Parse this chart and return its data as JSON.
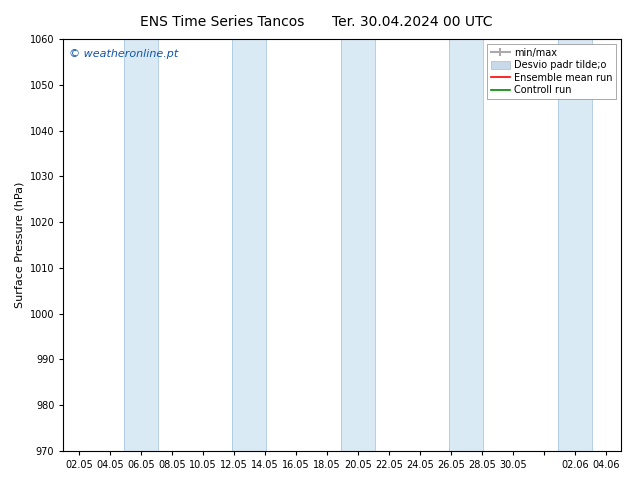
{
  "title_left": "ENS Time Series Tancos",
  "title_right": "Ter. 30.04.2024 00 UTC",
  "ylabel": "Surface Pressure (hPa)",
  "ylim": [
    970,
    1060
  ],
  "yticks": [
    970,
    980,
    990,
    1000,
    1010,
    1020,
    1030,
    1040,
    1050,
    1060
  ],
  "xtick_labels": [
    "02.05",
    "04.05",
    "06.05",
    "08.05",
    "10.05",
    "12.05",
    "14.05",
    "16.05",
    "18.05",
    "20.05",
    "22.05",
    "24.05",
    "26.05",
    "28.05",
    "30.05",
    "",
    "02.06",
    "04.06"
  ],
  "watermark": "© weatheronline.pt",
  "legend_entries": [
    "min/max",
    "Desvio padr tilde;o",
    "Ensemble mean run",
    "Controll run"
  ],
  "background_color": "#ffffff",
  "plot_bg_color": "#ffffff",
  "band_color": "#daeaf5",
  "band_edge_color": "#aac8e0",
  "title_fontsize": 10,
  "axis_label_fontsize": 8,
  "tick_fontsize": 7,
  "watermark_fontsize": 8,
  "legend_fontsize": 7
}
